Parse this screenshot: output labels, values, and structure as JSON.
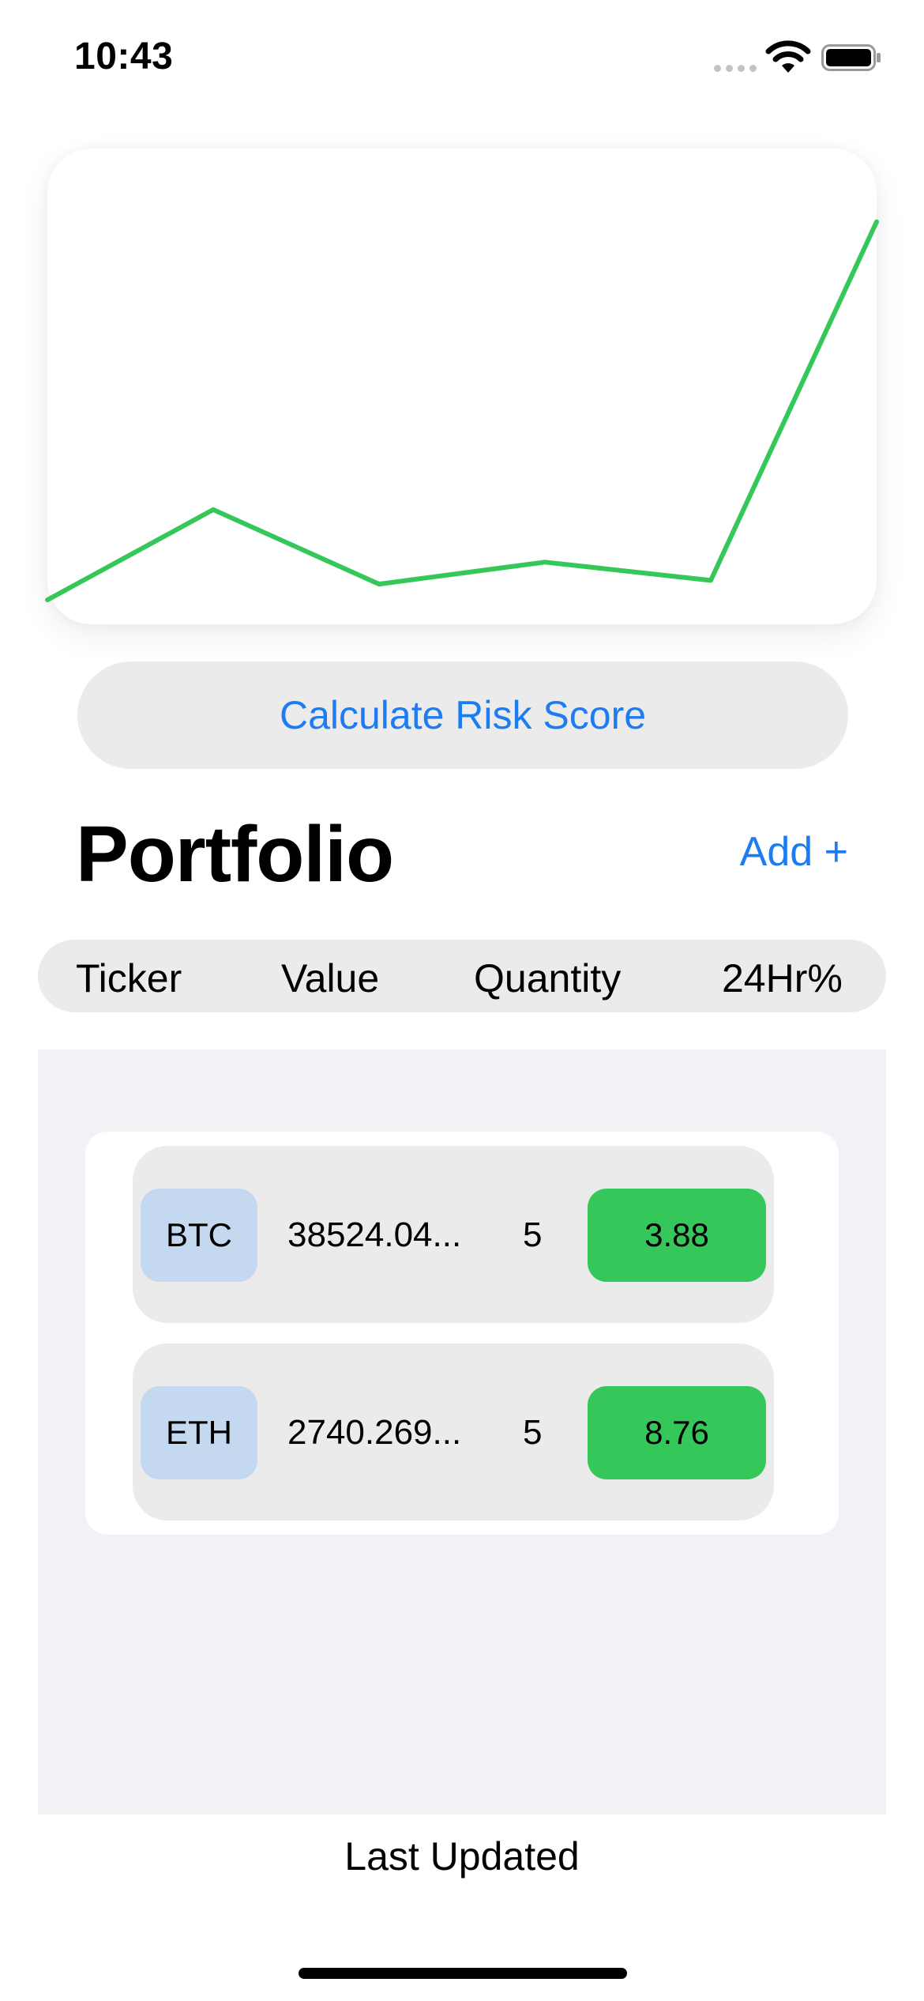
{
  "status_bar": {
    "time": "10:43"
  },
  "chart_data": {
    "type": "line",
    "x": [
      0,
      1,
      2,
      3,
      4,
      5
    ],
    "series": [
      {
        "values": [
          1.0,
          4.7,
          1.65,
          2.55,
          1.8,
          16.5
        ],
        "color": "#36c75a"
      }
    ],
    "ylim": [
      0,
      19.5
    ],
    "grid": false,
    "legend": "none"
  },
  "risk_button": {
    "label": "Calculate Risk Score"
  },
  "portfolio": {
    "title": "Portfolio",
    "add_label": "Add +"
  },
  "table": {
    "headers": [
      "Ticker",
      "Value",
      "Quantity",
      "24Hr%"
    ],
    "rows": [
      {
        "ticker": "BTC",
        "value": "38524.04...",
        "quantity": "5",
        "change": "3.88"
      },
      {
        "ticker": "ETH",
        "value": "2740.269...",
        "quantity": "5",
        "change": "8.76"
      }
    ]
  },
  "footer": {
    "last_updated": "Last Updated"
  },
  "colors": {
    "accent": "#1e7cf2",
    "positive": "#36c75a",
    "ticker_chip": "#c4d9f0"
  }
}
